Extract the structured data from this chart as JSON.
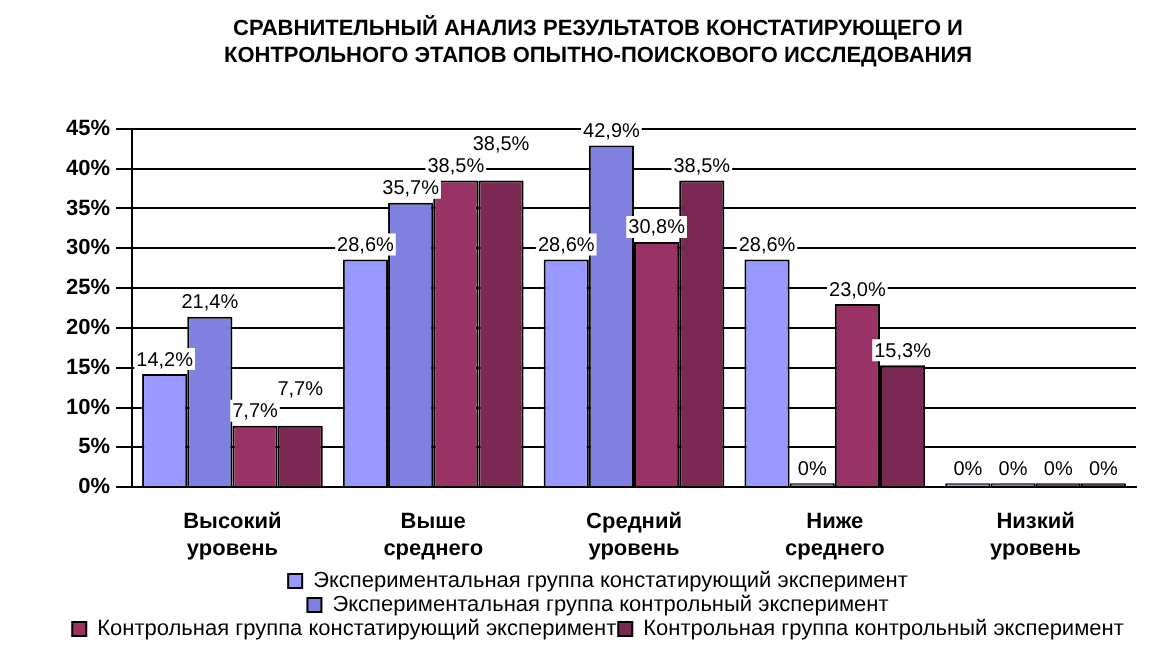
{
  "chart_data": {
    "type": "bar",
    "title": "СРАВНИТЕЛЬНЫЙ АНАЛИЗ РЕЗУЛЬТАТОВ КОНСТАТИРУЮЩЕГО И КОНТРОЛЬНОГО ЭТАПОВ ОПЫТНО-ПОИСКОВОГО ИССЛЕДОВАНИЯ",
    "categories": [
      "Высокий уровень",
      "Выше среднего",
      "Средний уровень",
      "Ниже среднего",
      "Низкий уровень"
    ],
    "series": [
      {
        "name": "Экспериментальная группа констатирующий эксперимент",
        "color": "#9999ff",
        "values": [
          14.2,
          28.6,
          28.6,
          28.6,
          0
        ],
        "value_labels": [
          "14,2%",
          "28,6%",
          "28,6%",
          "28,6%",
          "0%"
        ]
      },
      {
        "name": "Экспериментальная группа контрольный эксперимент",
        "color": "#8080e0",
        "values": [
          21.4,
          35.7,
          42.9,
          0,
          0
        ],
        "value_labels": [
          "21,4%",
          "35,7%",
          "42,9%",
          "0%",
          "0%"
        ]
      },
      {
        "name": "Контрольная группа констатирующий эксперимент",
        "color": "#993366",
        "values": [
          7.7,
          38.5,
          30.8,
          23.0,
          0
        ],
        "value_labels": [
          "7,7%",
          "38,5%",
          "30,8%",
          "23,0%",
          "0%"
        ]
      },
      {
        "name": "Контрольная группа контрольный эксперимент",
        "color": "#7a2952",
        "values": [
          7.7,
          38.5,
          38.5,
          15.3,
          0
        ],
        "value_labels": [
          "7,7%",
          "38,5%",
          "38,5%",
          "15,3%",
          "0%"
        ]
      }
    ],
    "ylim": [
      0,
      45
    ],
    "yticks": [
      {
        "value": 0,
        "label": "0%"
      },
      {
        "value": 5,
        "label": "5%"
      },
      {
        "value": 10,
        "label": "10%"
      },
      {
        "value": 15,
        "label": "15%"
      },
      {
        "value": 20,
        "label": "20%"
      },
      {
        "value": 25,
        "label": "25%"
      },
      {
        "value": 30,
        "label": "30%"
      },
      {
        "value": 35,
        "label": "35%"
      },
      {
        "value": 40,
        "label": "40%"
      },
      {
        "value": 45,
        "label": "45%"
      }
    ],
    "grid": "y",
    "legend": "bottom"
  }
}
